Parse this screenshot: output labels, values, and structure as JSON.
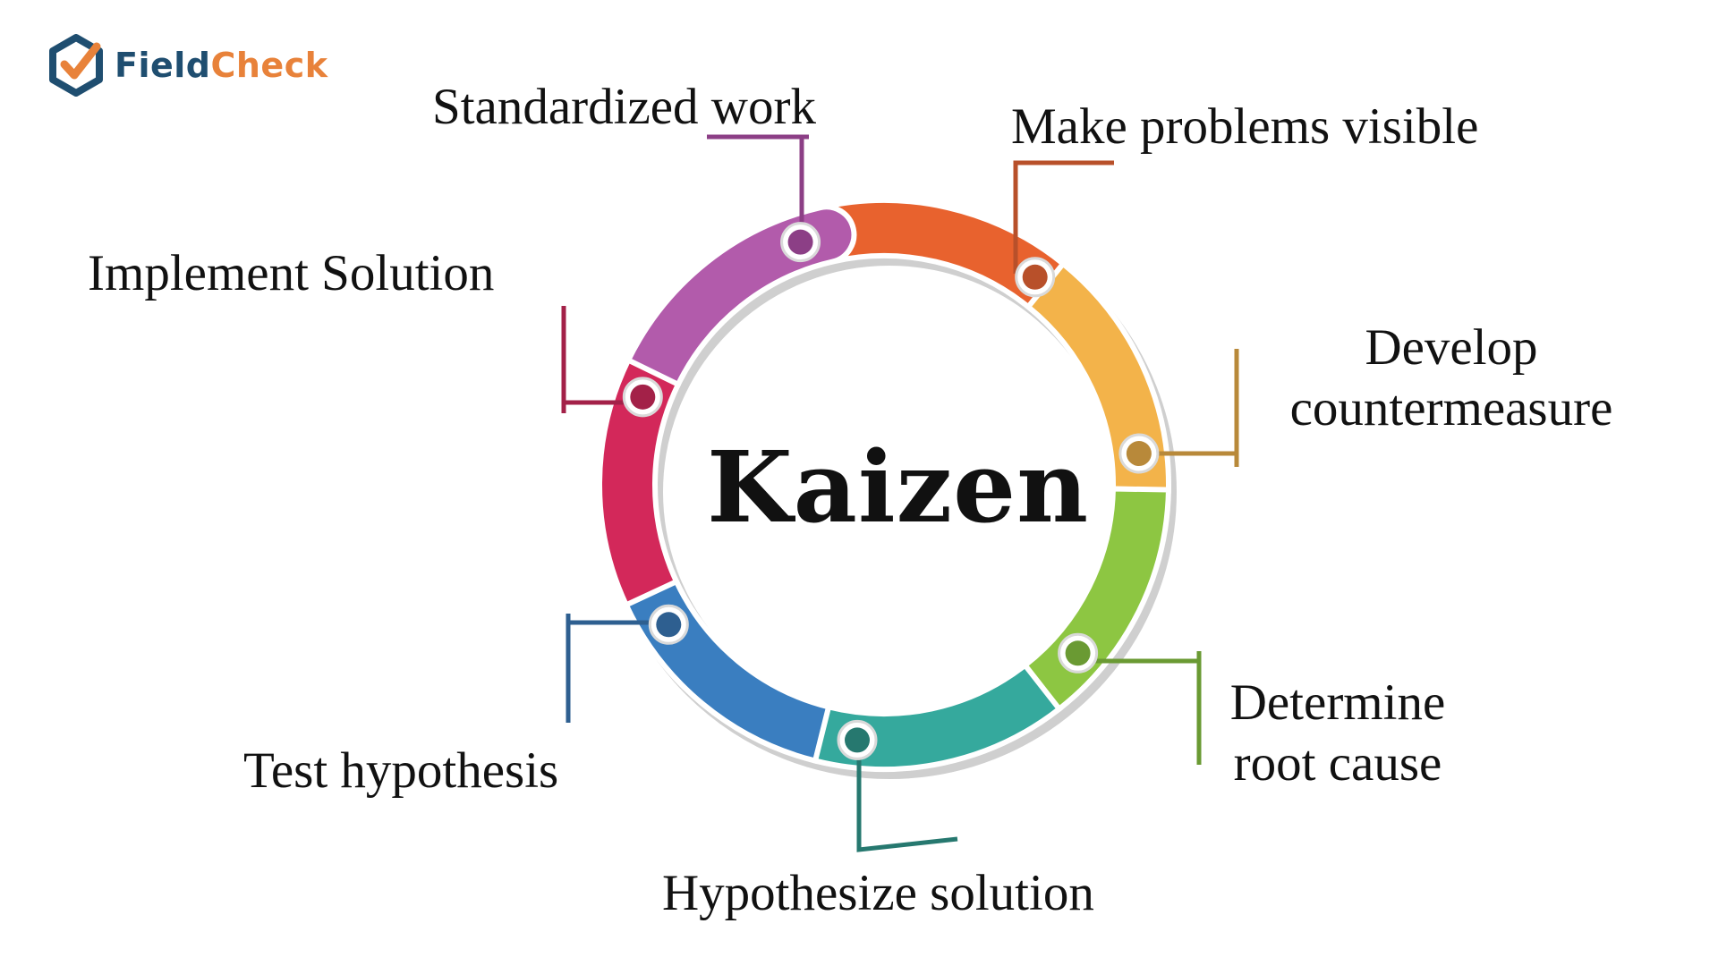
{
  "logo": {
    "text_part1": "Field",
    "text_part2": "Check",
    "icon": "hexagon-check-icon",
    "colors": {
      "primary": "#1f4e70",
      "accent": "#e8823a"
    }
  },
  "center_title": "Kaizen",
  "steps": [
    {
      "label_lines": [
        "Make problems visible"
      ],
      "color": "#e8622e",
      "dot_color": "#b8502a"
    },
    {
      "label_lines": [
        "Develop",
        "countermeasure"
      ],
      "color": "#f3b34a",
      "dot_color": "#b8893a"
    },
    {
      "label_lines": [
        "Determine",
        "root cause"
      ],
      "color": "#8dc642",
      "dot_color": "#6a9a33"
    },
    {
      "label_lines": [
        "Hypothesize solution"
      ],
      "color": "#35a99d",
      "dot_color": "#26786f"
    },
    {
      "label_lines": [
        "Test hypothesis"
      ],
      "color": "#3a7ec0",
      "dot_color": "#2e5f90"
    },
    {
      "label_lines": [
        "Implement Solution"
      ],
      "color": "#d3285a",
      "dot_color": "#a32148"
    },
    {
      "label_lines": [
        "Standardized work"
      ],
      "color": "#b25bab",
      "dot_color": "#8c3f86"
    }
  ]
}
